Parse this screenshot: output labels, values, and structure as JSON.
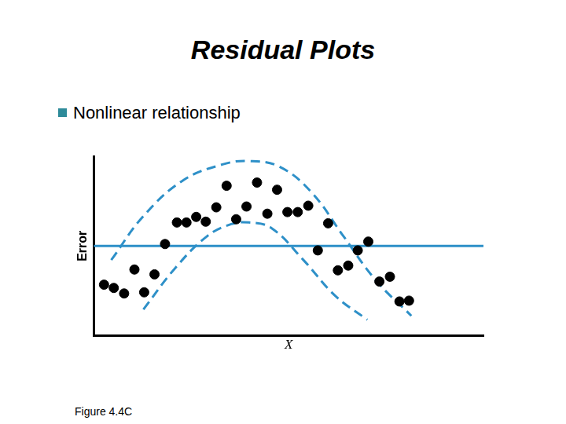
{
  "chart_data": {
    "type": "scatter",
    "title": "Residual Plots",
    "subtitle": "Nonlinear relationship",
    "annotations": [
      "Figure 4.4C"
    ],
    "x_label": "X",
    "y_label": "Error",
    "xlim": [
      0,
      20
    ],
    "ylim": [
      -10,
      10
    ],
    "grid": false,
    "tick_labels": false,
    "series": [
      {
        "type": "line",
        "color": "#2e90c8",
        "line_style": "solid",
        "x": [
          0,
          20
        ],
        "values": [
          0,
          0
        ]
      },
      {
        "type": "line",
        "color": "#2e90c8",
        "line_style": "dashed",
        "x": [
          0.9,
          2.55,
          4.6,
          6.65,
          7.97,
          9.53,
          11.17,
          12.81,
          14.46,
          16.3
        ],
        "values": [
          -1.56,
          3.33,
          7.33,
          9.11,
          9.47,
          8.84,
          6.0,
          1.11,
          -3.78,
          -7.78
        ]
      },
      {
        "type": "line",
        "color": "#2e90c8",
        "line_style": "dashed",
        "x": [
          2.55,
          4.19,
          5.83,
          7.06,
          7.97,
          9.12,
          10.76,
          12.4,
          14.04
        ],
        "values": [
          -7.07,
          -2.44,
          1.11,
          2.44,
          2.62,
          2.0,
          -1.56,
          -5.56,
          -8.22
        ]
      },
      {
        "type": "scatter",
        "color": "#000000",
        "marker": "circle",
        "x": [
          0.53,
          1.03,
          1.56,
          2.09,
          2.59,
          3.12,
          3.66,
          4.27,
          4.76,
          5.26,
          5.75,
          6.29,
          6.82,
          7.31,
          7.84,
          8.38,
          8.91,
          9.41,
          9.94,
          10.47,
          11.01,
          11.5,
          12.03,
          12.53,
          13.06,
          13.55,
          14.09,
          14.66,
          15.2,
          15.69,
          16.18
        ],
        "values": [
          -4.31,
          -4.67,
          -5.29,
          -2.62,
          -5.16,
          -3.16,
          0.22,
          2.62,
          2.62,
          3.24,
          2.71,
          4.31,
          6.71,
          2.98,
          4.4,
          7.07,
          3.6,
          6.27,
          3.78,
          3.78,
          4.49,
          -0.49,
          2.53,
          -2.71,
          -2.18,
          -0.49,
          0.49,
          -3.96,
          -3.42,
          -6.18,
          -6.09
        ]
      }
    ]
  }
}
